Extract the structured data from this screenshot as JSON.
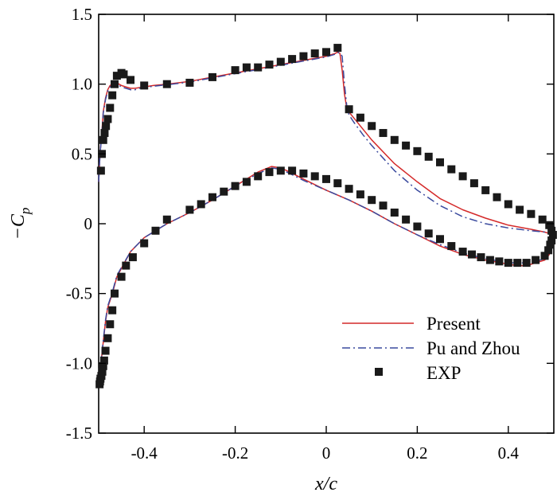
{
  "chart_data": {
    "type": "line",
    "xlabel": "x/c",
    "ylabel_prefix": "−C",
    "ylabel_subscript": "p",
    "xlim": [
      -0.5,
      0.5
    ],
    "ylim": [
      -1.5,
      1.5
    ],
    "grid": false,
    "legend_position": "bottom-right",
    "x_ticks": [
      -0.4,
      -0.2,
      0,
      0.2,
      0.4
    ],
    "x_tick_labels": [
      "-0.4",
      "-0.2",
      "0",
      "0.2",
      "0.4"
    ],
    "y_ticks": [
      -1.5,
      -1.0,
      -0.5,
      0,
      0.5,
      1.0,
      1.5
    ],
    "y_tick_labels": [
      "-1.5",
      "-1.0",
      "-0.5",
      "0",
      "0.5",
      "1.0",
      "1.5"
    ],
    "series": [
      {
        "name": "Present",
        "style": "solid",
        "color": "#d42a2a",
        "x": [
          -0.5,
          -0.497,
          -0.493,
          -0.49,
          -0.485,
          -0.48,
          -0.475,
          -0.47,
          -0.465,
          -0.46,
          -0.455,
          -0.45,
          -0.44,
          -0.43,
          -0.42,
          -0.41,
          -0.4,
          -0.38,
          -0.35,
          -0.3,
          -0.25,
          -0.2,
          -0.15,
          -0.1,
          -0.05,
          0.0,
          0.02,
          0.025,
          0.03,
          0.035,
          0.04,
          0.045,
          0.05,
          0.06,
          0.08,
          0.1,
          0.15,
          0.2,
          0.25,
          0.3,
          0.35,
          0.4,
          0.45,
          0.48,
          0.5,
          0.5,
          0.495,
          0.49,
          0.48,
          0.46,
          0.44,
          0.42,
          0.4,
          0.35,
          0.3,
          0.25,
          0.2,
          0.15,
          0.1,
          0.05,
          0.0,
          -0.05,
          -0.08,
          -0.1,
          -0.12,
          -0.15,
          -0.2,
          -0.25,
          -0.3,
          -0.35,
          -0.4,
          -0.43,
          -0.46,
          -0.47,
          -0.48,
          -0.485,
          -0.49,
          -0.495,
          -0.5
        ],
        "y": [
          0.3,
          0.5,
          0.65,
          0.8,
          0.9,
          0.96,
          0.99,
          1.0,
          1.01,
          1.01,
          1.0,
          0.99,
          0.98,
          0.97,
          0.97,
          0.975,
          0.98,
          0.99,
          1.0,
          1.02,
          1.05,
          1.08,
          1.11,
          1.14,
          1.17,
          1.2,
          1.22,
          1.23,
          1.22,
          1.1,
          0.93,
          0.83,
          0.8,
          0.76,
          0.68,
          0.6,
          0.43,
          0.3,
          0.18,
          0.1,
          0.04,
          -0.01,
          -0.04,
          -0.06,
          -0.08,
          -0.08,
          -0.15,
          -0.22,
          -0.26,
          -0.28,
          -0.3,
          -0.3,
          -0.29,
          -0.26,
          -0.22,
          -0.16,
          -0.08,
          0.0,
          0.09,
          0.17,
          0.24,
          0.32,
          0.37,
          0.4,
          0.41,
          0.37,
          0.27,
          0.17,
          0.08,
          0.0,
          -0.1,
          -0.2,
          -0.38,
          -0.5,
          -0.6,
          -0.7,
          -0.85,
          -1.0,
          -1.1
        ]
      },
      {
        "name": "Pu and Zhou",
        "style": "dashdot",
        "color": "#3a4a9e",
        "x": [
          -0.5,
          -0.497,
          -0.493,
          -0.49,
          -0.485,
          -0.48,
          -0.475,
          -0.47,
          -0.465,
          -0.46,
          -0.455,
          -0.45,
          -0.44,
          -0.43,
          -0.42,
          -0.41,
          -0.4,
          -0.38,
          -0.35,
          -0.3,
          -0.25,
          -0.2,
          -0.15,
          -0.1,
          -0.05,
          0.0,
          0.02,
          0.025,
          0.03,
          0.035,
          0.04,
          0.045,
          0.05,
          0.06,
          0.08,
          0.1,
          0.15,
          0.2,
          0.25,
          0.3,
          0.35,
          0.4,
          0.45,
          0.48,
          0.5,
          0.5,
          0.495,
          0.49,
          0.48,
          0.46,
          0.44,
          0.42,
          0.4,
          0.35,
          0.3,
          0.25,
          0.2,
          0.15,
          0.1,
          0.05,
          0.0,
          -0.05,
          -0.08,
          -0.1,
          -0.12,
          -0.15,
          -0.2,
          -0.25,
          -0.3,
          -0.35,
          -0.4,
          -0.43,
          -0.46,
          -0.47,
          -0.48,
          -0.485,
          -0.49,
          -0.495,
          -0.5
        ],
        "y": [
          0.3,
          0.5,
          0.64,
          0.79,
          0.89,
          0.95,
          0.98,
          0.99,
          1.0,
          1.0,
          0.99,
          0.98,
          0.97,
          0.96,
          0.96,
          0.97,
          0.975,
          0.985,
          0.995,
          1.015,
          1.045,
          1.075,
          1.105,
          1.135,
          1.165,
          1.195,
          1.215,
          1.225,
          1.225,
          1.2,
          1.0,
          0.85,
          0.78,
          0.73,
          0.64,
          0.56,
          0.38,
          0.24,
          0.13,
          0.05,
          0.0,
          -0.03,
          -0.05,
          -0.06,
          -0.08,
          -0.08,
          -0.15,
          -0.21,
          -0.25,
          -0.27,
          -0.28,
          -0.28,
          -0.28,
          -0.25,
          -0.21,
          -0.15,
          -0.08,
          0.0,
          0.09,
          0.17,
          0.24,
          0.31,
          0.36,
          0.39,
          0.4,
          0.36,
          0.27,
          0.17,
          0.08,
          0.0,
          -0.1,
          -0.2,
          -0.37,
          -0.49,
          -0.59,
          -0.69,
          -0.84,
          -0.99,
          -1.09
        ]
      },
      {
        "name": "EXP",
        "style": "marker",
        "color": "#1a1a1a",
        "x": [
          -0.495,
          -0.493,
          -0.49,
          -0.487,
          -0.484,
          -0.48,
          -0.475,
          -0.47,
          -0.465,
          -0.46,
          -0.45,
          -0.445,
          -0.43,
          -0.4,
          -0.35,
          -0.3,
          -0.25,
          -0.2,
          -0.175,
          -0.15,
          -0.125,
          -0.1,
          -0.075,
          -0.05,
          -0.025,
          0.0,
          0.025,
          0.05,
          0.075,
          0.1,
          0.125,
          0.15,
          0.175,
          0.2,
          0.225,
          0.25,
          0.275,
          0.3,
          0.325,
          0.35,
          0.375,
          0.4,
          0.425,
          0.45,
          0.475,
          0.49,
          0.495,
          0.498,
          0.495,
          0.492,
          0.488,
          0.48,
          0.46,
          0.44,
          0.42,
          0.4,
          0.38,
          0.36,
          0.34,
          0.32,
          0.3,
          0.275,
          0.25,
          0.225,
          0.2,
          0.175,
          0.15,
          0.125,
          0.1,
          0.075,
          0.05,
          0.025,
          0.0,
          -0.025,
          -0.05,
          -0.075,
          -0.1,
          -0.125,
          -0.15,
          -0.175,
          -0.2,
          -0.225,
          -0.25,
          -0.275,
          -0.3,
          -0.35,
          -0.375,
          -0.4,
          -0.425,
          -0.44,
          -0.45,
          -0.465,
          -0.47,
          -0.475,
          -0.48,
          -0.485,
          -0.488,
          -0.49,
          -0.492,
          -0.494,
          -0.496,
          -0.497,
          -0.498
        ],
        "y": [
          0.38,
          0.5,
          0.6,
          0.65,
          0.7,
          0.75,
          0.83,
          0.92,
          1.0,
          1.06,
          1.08,
          1.07,
          1.03,
          0.99,
          1.0,
          1.01,
          1.05,
          1.1,
          1.12,
          1.12,
          1.14,
          1.16,
          1.18,
          1.2,
          1.22,
          1.23,
          1.26,
          0.82,
          0.76,
          0.7,
          0.65,
          0.6,
          0.56,
          0.52,
          0.48,
          0.44,
          0.39,
          0.34,
          0.29,
          0.24,
          0.19,
          0.14,
          0.1,
          0.07,
          0.03,
          -0.01,
          -0.05,
          -0.08,
          -0.12,
          -0.15,
          -0.19,
          -0.23,
          -0.26,
          -0.28,
          -0.28,
          -0.28,
          -0.27,
          -0.26,
          -0.24,
          -0.22,
          -0.2,
          -0.16,
          -0.11,
          -0.07,
          -0.02,
          0.03,
          0.08,
          0.13,
          0.17,
          0.21,
          0.25,
          0.29,
          0.32,
          0.34,
          0.36,
          0.38,
          0.38,
          0.37,
          0.34,
          0.3,
          0.27,
          0.23,
          0.19,
          0.14,
          0.1,
          0.03,
          -0.05,
          -0.14,
          -0.24,
          -0.3,
          -0.38,
          -0.5,
          -0.62,
          -0.72,
          -0.82,
          -0.91,
          -0.98,
          -1.02,
          -1.06,
          -1.09,
          -1.11,
          -1.13,
          -1.15
        ]
      }
    ]
  }
}
